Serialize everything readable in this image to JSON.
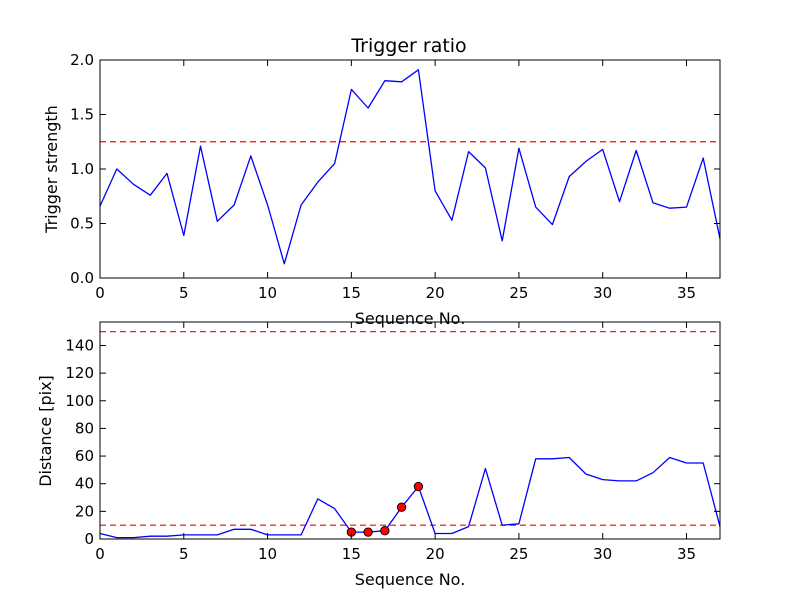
{
  "colors": {
    "line": "#0000ff",
    "threshold": "#ff0000",
    "marker_fill": "#ff0000",
    "marker_edge": "#000000",
    "axes": "#000000",
    "background": "#ffffff"
  },
  "chart_data": [
    {
      "type": "line",
      "title": "Trigger ratio",
      "xlabel": "Sequence No.",
      "ylabel": "Trigger strength",
      "xlim": [
        0,
        37
      ],
      "ylim": [
        0,
        2.0
      ],
      "xticks": [
        0,
        5,
        10,
        15,
        20,
        25,
        30,
        35
      ],
      "xtick_labels": [
        "0",
        "5",
        "10",
        "15",
        "20",
        "25",
        "30",
        "35"
      ],
      "yticks": [
        0.0,
        0.5,
        1.0,
        1.5,
        2.0
      ],
      "ytick_labels": [
        "0.0",
        "0.5",
        "1.0",
        "1.5",
        "2.0"
      ],
      "grid": false,
      "series": [
        {
          "x": [
            0,
            1,
            2,
            3,
            4,
            5,
            6,
            7,
            8,
            9,
            10,
            11,
            12,
            13,
            14,
            15,
            16,
            17,
            18,
            19,
            20,
            21,
            22,
            23,
            24,
            25,
            26,
            27,
            28,
            29,
            30,
            31,
            32,
            33,
            34,
            35,
            36,
            37
          ],
          "values": [
            0.66,
            1.0,
            0.86,
            0.76,
            0.96,
            0.39,
            1.21,
            0.52,
            0.67,
            1.12,
            0.67,
            0.13,
            0.67,
            0.88,
            1.05,
            1.73,
            1.56,
            1.81,
            1.8,
            1.91,
            0.8,
            0.53,
            1.16,
            1.01,
            0.34,
            1.19,
            0.65,
            0.49,
            0.93,
            1.07,
            1.18,
            0.7,
            1.17,
            0.69,
            0.64,
            0.65,
            1.1,
            0.36
          ]
        }
      ],
      "thresholds": [
        1.25
      ]
    },
    {
      "type": "line",
      "title": "",
      "xlabel": "Sequence No.",
      "ylabel": "Distance [pix]",
      "xlim": [
        0,
        37
      ],
      "ylim": [
        0,
        157
      ],
      "xticks": [
        0,
        5,
        10,
        15,
        20,
        25,
        30,
        35
      ],
      "xtick_labels": [
        "0",
        "5",
        "10",
        "15",
        "20",
        "25",
        "30",
        "35"
      ],
      "yticks": [
        0,
        20,
        40,
        60,
        80,
        100,
        120,
        140
      ],
      "ytick_labels": [
        "0",
        "20",
        "40",
        "60",
        "80",
        "100",
        "120",
        "140"
      ],
      "grid": false,
      "series": [
        {
          "x": [
            0,
            1,
            2,
            3,
            4,
            5,
            6,
            7,
            8,
            9,
            10,
            11,
            12,
            13,
            14,
            15,
            16,
            17,
            18,
            19,
            20,
            21,
            22,
            23,
            24,
            25,
            26,
            27,
            28,
            29,
            30,
            31,
            32,
            33,
            34,
            35,
            36,
            37
          ],
          "values": [
            4,
            1,
            1,
            2,
            2,
            3,
            3,
            3,
            7,
            7,
            3,
            3,
            3,
            29,
            22,
            5,
            5,
            6,
            23,
            38,
            4,
            4,
            9,
            51,
            10,
            11,
            58,
            58,
            59,
            47,
            43,
            42,
            42,
            48,
            59,
            55,
            55,
            9
          ]
        }
      ],
      "markers": {
        "x": [
          15,
          16,
          17,
          18,
          19
        ],
        "y": [
          5,
          5,
          6,
          23,
          38
        ]
      },
      "thresholds": [
        150,
        10
      ]
    }
  ]
}
